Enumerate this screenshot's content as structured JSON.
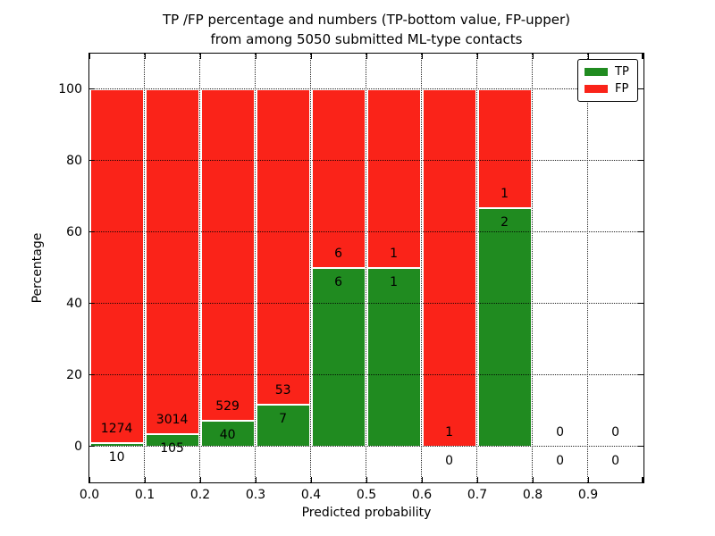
{
  "title": {
    "line1": "TP /FP percentage and numbers (TP-bottom value, FP-upper)",
    "line2": "from among 5050 submitted ML-type contacts"
  },
  "axes": {
    "xlabel": "Predicted probability",
    "ylabel": "Percentage",
    "x_tick_labels": [
      "0.0",
      "0.1",
      "0.2",
      "0.3",
      "0.4",
      "0.5",
      "0.6",
      "0.7",
      "0.8",
      "0.9"
    ],
    "y_tick_labels": [
      "0",
      "20",
      "40",
      "60",
      "80",
      "100"
    ]
  },
  "legend": {
    "items": [
      {
        "label": "TP",
        "color": "#208b20"
      },
      {
        "label": "FP",
        "color": "#fa2319"
      }
    ]
  },
  "chart_data": {
    "type": "bar",
    "stacked": true,
    "normalized": "each bin scaled to 100%, green TP share on bottom, red FP share on top",
    "title": "TP /FP percentage and numbers (TP-bottom value, FP-upper) from among 5050 submitted ML-type contacts",
    "xlabel": "Predicted probability",
    "ylabel": "Percentage",
    "xlim": [
      0.0,
      1.0
    ],
    "ylim": [
      -10,
      110
    ],
    "grid": true,
    "grid_style": "dotted, drawn above bars",
    "legend_position": "upper right",
    "bin_edges": [
      0.0,
      0.1,
      0.2,
      0.3,
      0.4,
      0.5,
      0.6,
      0.7,
      0.8,
      0.9,
      1.0
    ],
    "categories": [
      "0.0-0.1",
      "0.1-0.2",
      "0.2-0.3",
      "0.3-0.4",
      "0.4-0.5",
      "0.5-0.6",
      "0.6-0.7",
      "0.7-0.8",
      "0.8-0.9",
      "0.9-1.0"
    ],
    "series": [
      {
        "name": "TP",
        "color": "#208b20",
        "counts": [
          10,
          105,
          40,
          7,
          6,
          1,
          0,
          2,
          0,
          0
        ]
      },
      {
        "name": "FP",
        "color": "#fa2319",
        "counts": [
          1274,
          3014,
          529,
          53,
          6,
          1,
          1,
          1,
          0,
          0
        ]
      }
    ],
    "tp_percent_by_bin": [
      0.78,
      3.37,
      7.03,
      11.67,
      50.0,
      50.0,
      0.0,
      66.67,
      null,
      null
    ],
    "y_tick_values": [
      0,
      20,
      40,
      60,
      80,
      100
    ],
    "x_tick_values": [
      0.0,
      0.1,
      0.2,
      0.3,
      0.4,
      0.5,
      0.6,
      0.7,
      0.8,
      0.9
    ]
  }
}
